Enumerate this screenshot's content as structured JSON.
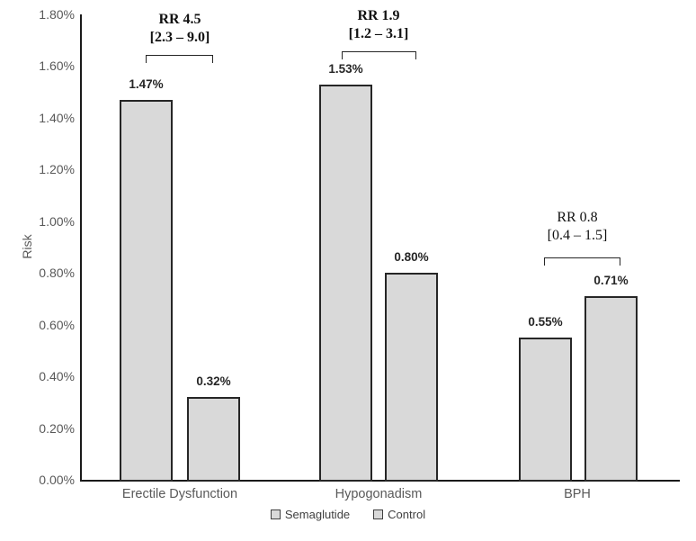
{
  "chart_data": {
    "type": "bar",
    "title": "",
    "xlabel": "",
    "ylabel": "Risk",
    "ylim": [
      0,
      1.8
    ],
    "ytick_step": 0.2,
    "ytick_labels": [
      "1.80%",
      "1.60%",
      "1.40%",
      "1.20%",
      "1.00%",
      "0.80%",
      "0.60%",
      "0.40%",
      "0.20%",
      "0.00%"
    ],
    "grid": false,
    "legend_position": "bottom",
    "categories": [
      "Erectile Dysfunction",
      "Hypogonadism",
      "BPH"
    ],
    "series": [
      {
        "name": "Semaglutide",
        "values": [
          1.47,
          1.53,
          0.55
        ],
        "labels": [
          "1.47%",
          "1.53%",
          "0.55%"
        ]
      },
      {
        "name": "Control",
        "values": [
          0.32,
          0.8,
          0.71
        ],
        "labels": [
          "0.32%",
          "0.80%",
          "0.71%"
        ]
      }
    ],
    "annotations": [
      {
        "line1": "RR 4.5",
        "line2": "[2.3 – 9.0]",
        "bold": true
      },
      {
        "line1": "RR 1.9",
        "line2": "[1.2 – 3.1]",
        "bold": true
      },
      {
        "line1": "RR 0.8",
        "line2": "[0.4 – 1.5]",
        "bold": false
      }
    ],
    "colors": {
      "bar_fill": "#d9d9d9",
      "bar_border": "#262626",
      "axis_line": "#1a1a1a",
      "axis_text": "#595959",
      "data_label_text": "#262626",
      "annotation_text": "#111111",
      "background": "#ffffff"
    }
  }
}
